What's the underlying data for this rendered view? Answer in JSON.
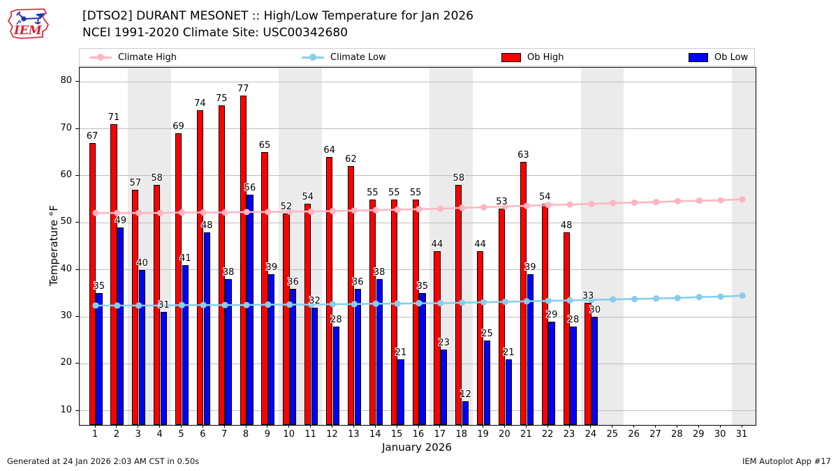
{
  "header": {
    "title_line1": "[DTSO2] DURANT MESONET :: High/Low Temperature for Jan 2026",
    "title_line2": "NCEI 1991-2020 Climate Site: USC00342680",
    "logo_text": "IEM"
  },
  "legend": {
    "items": [
      {
        "label": "Climate High",
        "type": "line",
        "color": "#ffb6c1"
      },
      {
        "label": "Climate Low",
        "type": "line",
        "color": "#87ceeb"
      },
      {
        "label": "Ob High",
        "type": "bar",
        "color": "#ff0000"
      },
      {
        "label": "Ob Low",
        "type": "bar",
        "color": "#0000ff"
      }
    ]
  },
  "footer": {
    "generated": "Generated at 24 Jan 2026 2:03 AM CST in 0.50s",
    "app": "IEM Autoplot App #17"
  },
  "chart_data": {
    "type": "bar",
    "title": "[DTSO2] DURANT MESONET :: High/Low Temperature for Jan 2026",
    "subtitle": "NCEI 1991-2020 Climate Site: USC00342680",
    "xlabel": "January 2026",
    "ylabel": "Temperature °F",
    "ylim": [
      7,
      83
    ],
    "yticks": [
      10,
      20,
      30,
      40,
      50,
      60,
      70,
      80
    ],
    "grid": true,
    "legend_position": "top",
    "x": [
      1,
      2,
      3,
      4,
      5,
      6,
      7,
      8,
      9,
      10,
      11,
      12,
      13,
      14,
      15,
      16,
      17,
      18,
      19,
      20,
      21,
      22,
      23,
      24,
      25,
      26,
      27,
      28,
      29,
      30,
      31
    ],
    "weekend_shading_days": [
      3,
      4,
      10,
      11,
      17,
      18,
      24,
      25,
      31
    ],
    "series": [
      {
        "name": "Ob High",
        "type": "bar",
        "color": "#ff0000",
        "values": [
          67,
          71,
          57,
          58,
          69,
          74,
          75,
          77,
          65,
          52,
          54,
          64,
          62,
          55,
          55,
          55,
          44,
          58,
          44,
          53,
          63,
          54,
          48,
          33,
          null,
          null,
          null,
          null,
          null,
          null,
          null
        ]
      },
      {
        "name": "Ob Low",
        "type": "bar",
        "color": "#0000ff",
        "values": [
          35,
          49,
          40,
          31,
          41,
          48,
          38,
          56,
          39,
          36,
          32,
          28,
          36,
          38,
          21,
          35,
          23,
          12,
          25,
          21,
          39,
          29,
          28,
          30,
          null,
          null,
          null,
          null,
          null,
          null,
          null
        ]
      },
      {
        "name": "Climate High",
        "type": "line",
        "color": "#ffb6c1",
        "values": [
          52.1,
          52.1,
          52.1,
          52.1,
          52.2,
          52.2,
          52.2,
          52.3,
          52.3,
          52.4,
          52.4,
          52.5,
          52.6,
          52.7,
          52.8,
          52.9,
          53.0,
          53.2,
          53.3,
          53.5,
          53.6,
          53.8,
          53.9,
          54.0,
          54.2,
          54.3,
          54.4,
          54.6,
          54.7,
          54.8,
          55.0
        ]
      },
      {
        "name": "Climate Low",
        "type": "line",
        "color": "#87ceeb",
        "values": [
          32.4,
          32.4,
          32.4,
          32.4,
          32.5,
          32.5,
          32.5,
          32.5,
          32.6,
          32.6,
          32.6,
          32.7,
          32.7,
          32.8,
          32.8,
          32.9,
          32.9,
          33.0,
          33.1,
          33.2,
          33.3,
          33.4,
          33.5,
          33.6,
          33.7,
          33.8,
          33.9,
          34.0,
          34.2,
          34.3,
          34.5
        ]
      }
    ]
  }
}
